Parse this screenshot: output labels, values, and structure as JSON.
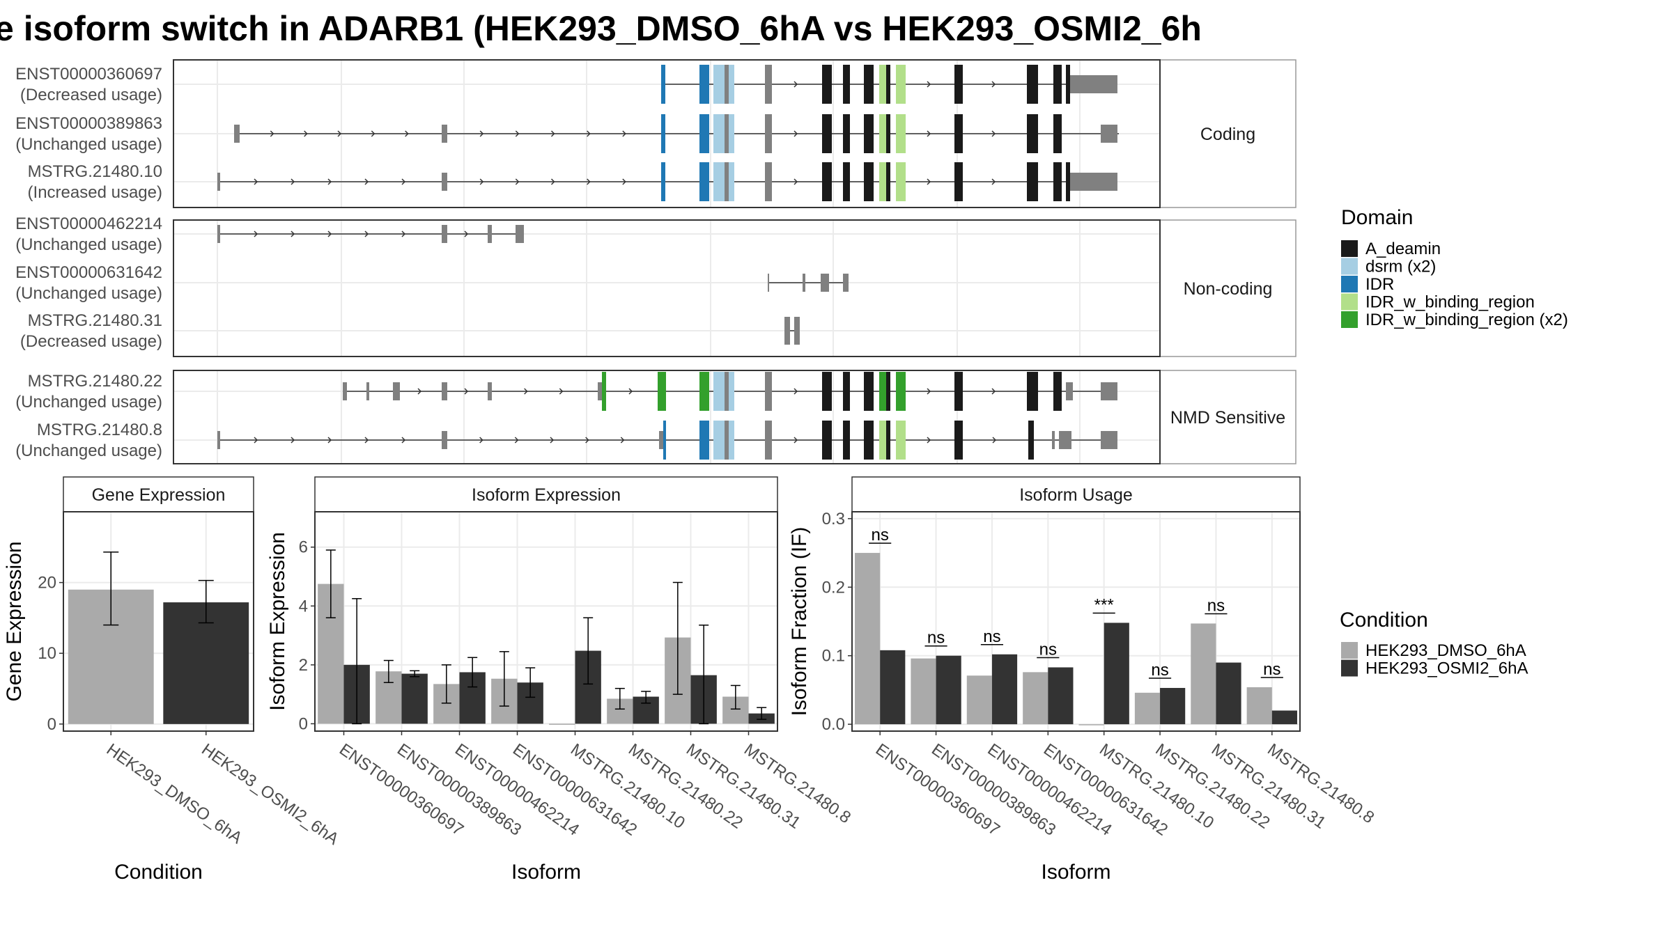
{
  "title": "e isoform switch in ADARB1 (HEK293_DMSO_6hA vs HEK293_OSMI2_6h",
  "colors": {
    "A_deamin": "#1a1a1a",
    "dsrm (x2)": "#a6cee3",
    "IDR": "#1f78b4",
    "IDR_w_binding_region": "#b2df8a",
    "IDR_w_binding_region (x2)": "#33a02c",
    "exon": "#808080",
    "dmso": "#aaaaaa",
    "osmi": "#333333"
  },
  "structure": {
    "sections": [
      {
        "label": "Coding",
        "transcripts": [
          {
            "id": "ENST00000360697",
            "status": "(Decreased usage)"
          },
          {
            "id": "ENST00000389863",
            "status": "(Unchanged usage)"
          },
          {
            "id": "MSTRG.21480.10",
            "status": "(Increased usage)"
          }
        ]
      },
      {
        "label": "Non-coding",
        "transcripts": [
          {
            "id": "ENST00000462214",
            "status": "(Unchanged usage)"
          },
          {
            "id": "ENST00000631642",
            "status": "(Unchanged usage)"
          },
          {
            "id": "MSTRG.21480.31",
            "status": "(Decreased usage)"
          }
        ]
      },
      {
        "label": "NMD Sensitive",
        "transcripts": [
          {
            "id": "MSTRG.21480.22",
            "status": "(Unchanged usage)"
          },
          {
            "id": "MSTRG.21480.8",
            "status": "(Unchanged usage)"
          }
        ]
      }
    ]
  },
  "legend_domain": {
    "title": "Domain",
    "items": [
      "A_deamin",
      "dsrm (x2)",
      "IDR",
      "IDR_w_binding_region",
      "IDR_w_binding_region (x2)"
    ]
  },
  "legend_condition": {
    "title": "Condition",
    "items": [
      "HEK293_DMSO_6hA",
      "HEK293_OSMI2_6hA"
    ]
  },
  "chart_data": [
    {
      "type": "bar",
      "title": "Gene Expression",
      "xlabel": "Condition",
      "ylabel": "Gene Expression",
      "categories": [
        "HEK293_DMSO_6hA",
        "HEK293_OSMI2_6hA"
      ],
      "values": [
        19.0,
        17.2
      ],
      "error_low": [
        14.0,
        14.3
      ],
      "error_high": [
        24.3,
        20.3
      ],
      "yticks": [
        0,
        10,
        20
      ],
      "ylim": [
        -1,
        30
      ]
    },
    {
      "type": "bar",
      "title": "Isoform Expression",
      "xlabel": "Isoform",
      "ylabel": "Isoform Expression",
      "categories": [
        "ENST00000360697",
        "ENST00000389863",
        "ENST00000462214",
        "ENST00000631642",
        "MSTRG.21480.10",
        "MSTRG.21480.22",
        "MSTRG.21480.31",
        "MSTRG.21480.8"
      ],
      "series": [
        {
          "name": "HEK293_DMSO_6hA",
          "values": [
            4.75,
            1.78,
            1.35,
            1.53,
            0.0,
            0.85,
            2.93,
            0.92
          ],
          "error_low": [
            3.6,
            1.4,
            0.7,
            0.6,
            0.0,
            0.5,
            1.0,
            0.5
          ],
          "error_high": [
            5.9,
            2.15,
            2.0,
            2.45,
            0.0,
            1.2,
            4.8,
            1.3
          ]
        },
        {
          "name": "HEK293_OSMI2_6hA",
          "values": [
            2.0,
            1.7,
            1.75,
            1.4,
            2.48,
            0.92,
            1.65,
            0.35
          ],
          "error_low": [
            0.0,
            1.6,
            1.25,
            0.9,
            1.35,
            0.7,
            0.0,
            0.15
          ],
          "error_high": [
            4.25,
            1.8,
            2.25,
            1.9,
            3.6,
            1.1,
            3.35,
            0.55
          ]
        }
      ],
      "yticks": [
        0,
        2,
        4,
        6
      ],
      "ylim": [
        -0.25,
        7.2
      ]
    },
    {
      "type": "bar",
      "title": "Isoform Usage",
      "xlabel": "Isoform",
      "ylabel": "Isoform Fraction (IF)",
      "categories": [
        "ENST00000360697",
        "ENST00000389863",
        "ENST00000462214",
        "ENST00000631642",
        "MSTRG.21480.10",
        "MSTRG.21480.22",
        "MSTRG.21480.31",
        "MSTRG.21480.8"
      ],
      "series": [
        {
          "name": "HEK293_DMSO_6hA",
          "values": [
            0.25,
            0.096,
            0.071,
            0.076,
            0.0,
            0.046,
            0.147,
            0.054
          ]
        },
        {
          "name": "HEK293_OSMI2_6hA",
          "values": [
            0.108,
            0.1,
            0.102,
            0.083,
            0.148,
            0.053,
            0.09,
            0.02
          ]
        }
      ],
      "significance": [
        "ns",
        "ns",
        "ns",
        "ns",
        "***",
        "ns",
        "ns",
        "ns"
      ],
      "yticks": [
        "0.0",
        "0.1",
        "0.2",
        "0.3"
      ],
      "ylim": [
        -0.01,
        0.31
      ]
    }
  ]
}
